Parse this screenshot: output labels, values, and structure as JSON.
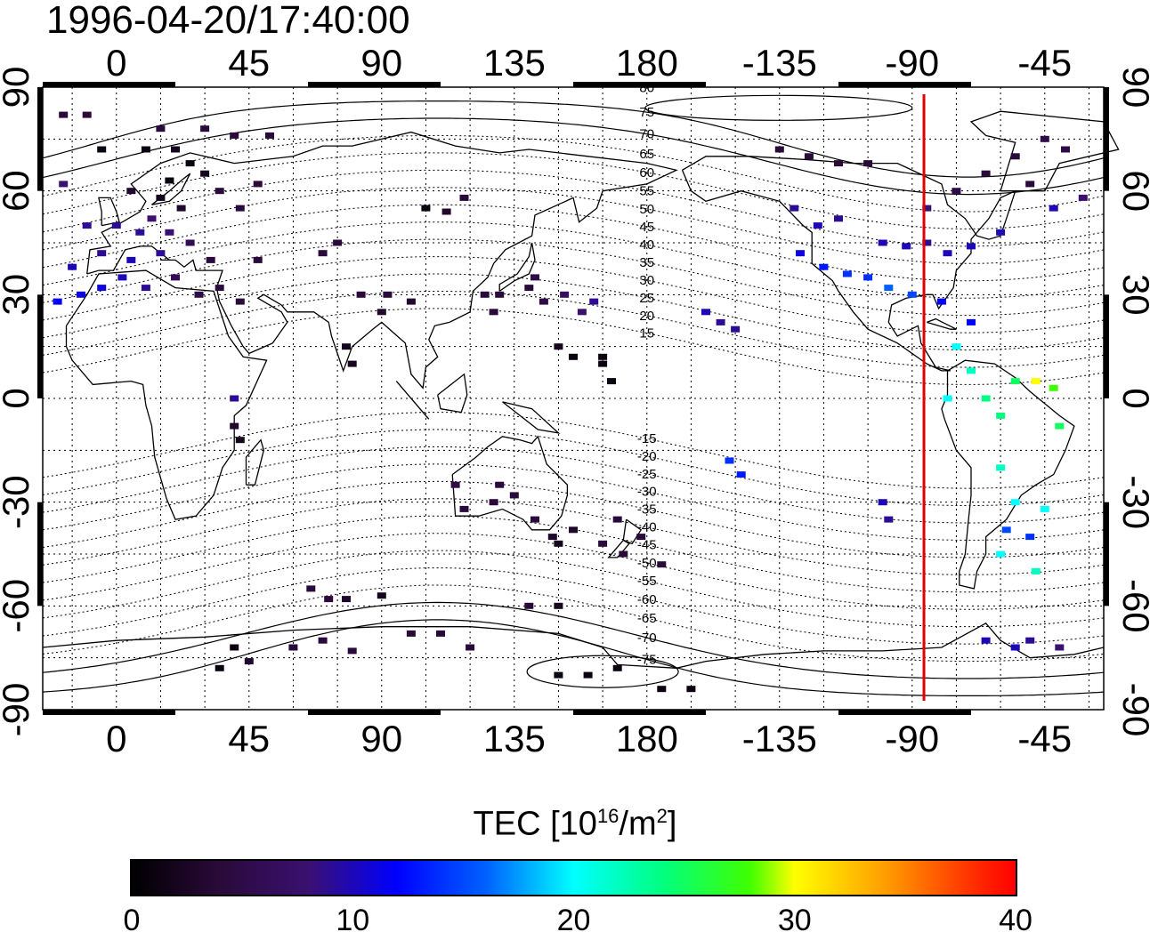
{
  "title": "1996-04-20/17:40:00",
  "lon_ticks": [
    {
      "value": 0,
      "label": "0"
    },
    {
      "value": 45,
      "label": "45"
    },
    {
      "value": 90,
      "label": "90"
    },
    {
      "value": 135,
      "label": "135"
    },
    {
      "value": 180,
      "label": "180"
    },
    {
      "value": 225,
      "label": "-135"
    },
    {
      "value": 270,
      "label": "-90"
    },
    {
      "value": 315,
      "label": "-45"
    }
  ],
  "lat_ticks": [
    {
      "value": 90,
      "label": "90"
    },
    {
      "value": 60,
      "label": "60"
    },
    {
      "value": 30,
      "label": "30"
    },
    {
      "value": 0,
      "label": "0"
    },
    {
      "value": -30,
      "label": "-30"
    },
    {
      "value": -60,
      "label": "-60"
    },
    {
      "value": -90,
      "label": "-90"
    }
  ],
  "contour_labels": [
    {
      "lat": 80,
      "label": "80"
    },
    {
      "lat": 75,
      "label": "75"
    },
    {
      "lat": 70,
      "label": "70"
    },
    {
      "lat": 65,
      "label": "65"
    },
    {
      "lat": 60,
      "label": "60"
    },
    {
      "lat": 55,
      "label": "55"
    },
    {
      "lat": 50,
      "label": "50"
    },
    {
      "lat": 45,
      "label": "45"
    },
    {
      "lat": 40,
      "label": "40"
    },
    {
      "lat": 35,
      "label": "35"
    },
    {
      "lat": 30,
      "label": "30"
    },
    {
      "lat": 25,
      "label": "25"
    },
    {
      "lat": 20,
      "label": "20"
    },
    {
      "lat": 15,
      "label": "15"
    },
    {
      "lat": -15,
      "label": "-15"
    },
    {
      "lat": -20,
      "label": "-20"
    },
    {
      "lat": -25,
      "label": "-25"
    },
    {
      "lat": -30,
      "label": "-30"
    },
    {
      "lat": -35,
      "label": "-35"
    },
    {
      "lat": -40,
      "label": "-40"
    },
    {
      "lat": -45,
      "label": "-45"
    },
    {
      "lat": -50,
      "label": "-50"
    },
    {
      "lat": -55,
      "label": "-55"
    },
    {
      "lat": -60,
      "label": "-60"
    },
    {
      "lat": -65,
      "label": "-65"
    },
    {
      "lat": -70,
      "label": "-70"
    },
    {
      "lat": -75,
      "label": "-75"
    }
  ],
  "terminator_lon": 274,
  "terminator_color": "#e00000",
  "colorbar": {
    "title": "TEC  [10",
    "title_exp": "16",
    "title_unit": "/m",
    "title_unit_exp": "2",
    "title_end": "]",
    "ticks": [
      {
        "value": 0,
        "label": "0"
      },
      {
        "value": 10,
        "label": "10"
      },
      {
        "value": 20,
        "label": "20"
      },
      {
        "value": 30,
        "label": "30"
      },
      {
        "value": 40,
        "label": "40"
      }
    ]
  },
  "chart_data": {
    "type": "scatter",
    "xlabel": "",
    "ylabel": "",
    "xlim": [
      -25,
      335
    ],
    "ylim": [
      -90,
      90
    ],
    "value_range": [
      0,
      40
    ],
    "points": [
      [
        -18,
        82,
        4
      ],
      [
        -10,
        82,
        4
      ],
      [
        15,
        78,
        4
      ],
      [
        30,
        78,
        4
      ],
      [
        40,
        76,
        4
      ],
      [
        52,
        76,
        4
      ],
      [
        -5,
        72,
        1
      ],
      [
        10,
        72,
        1
      ],
      [
        20,
        72,
        2
      ],
      [
        25,
        68,
        1
      ],
      [
        30,
        65,
        2
      ],
      [
        18,
        63,
        1
      ],
      [
        5,
        60,
        3
      ],
      [
        15,
        58,
        2
      ],
      [
        22,
        55,
        3
      ],
      [
        35,
        60,
        4
      ],
      [
        42,
        55,
        4
      ],
      [
        48,
        62,
        4
      ],
      [
        -18,
        62,
        8
      ],
      [
        -10,
        50,
        9
      ],
      [
        0,
        50,
        9
      ],
      [
        8,
        48,
        9
      ],
      [
        12,
        52,
        8
      ],
      [
        18,
        48,
        8
      ],
      [
        -5,
        42,
        9
      ],
      [
        5,
        40,
        10
      ],
      [
        15,
        42,
        9
      ],
      [
        25,
        45,
        6
      ],
      [
        32,
        40,
        4
      ],
      [
        -15,
        38,
        10
      ],
      [
        -20,
        28,
        12
      ],
      [
        -12,
        30,
        11
      ],
      [
        -5,
        32,
        11
      ],
      [
        2,
        35,
        10
      ],
      [
        10,
        32,
        9
      ],
      [
        20,
        35,
        6
      ],
      [
        28,
        30,
        5
      ],
      [
        35,
        32,
        4
      ],
      [
        42,
        28,
        4
      ],
      [
        48,
        40,
        4
      ],
      [
        75,
        45,
        4
      ],
      [
        70,
        42,
        4
      ],
      [
        83,
        30,
        4
      ],
      [
        92,
        30,
        4
      ],
      [
        100,
        28,
        3
      ],
      [
        90,
        25,
        3
      ],
      [
        78,
        15,
        2
      ],
      [
        80,
        10,
        2
      ],
      [
        105,
        55,
        1
      ],
      [
        112,
        54,
        3
      ],
      [
        118,
        58,
        4
      ],
      [
        125,
        30,
        4
      ],
      [
        130,
        30,
        4
      ],
      [
        128,
        25,
        4
      ],
      [
        140,
        32,
        4
      ],
      [
        145,
        28,
        5
      ],
      [
        142,
        35,
        5
      ],
      [
        152,
        30,
        7
      ],
      [
        158,
        25,
        8
      ],
      [
        162,
        28,
        9
      ],
      [
        150,
        15,
        2
      ],
      [
        155,
        12,
        1
      ],
      [
        165,
        10,
        1
      ],
      [
        168,
        5,
        1
      ],
      [
        165,
        12,
        1
      ],
      [
        40,
        0,
        9
      ],
      [
        40,
        -8,
        3
      ],
      [
        42,
        -12,
        2
      ],
      [
        115,
        -25,
        5
      ],
      [
        118,
        -32,
        4
      ],
      [
        128,
        -30,
        4
      ],
      [
        130,
        -25,
        4
      ],
      [
        135,
        -28,
        4
      ],
      [
        142,
        -35,
        4
      ],
      [
        148,
        -40,
        3
      ],
      [
        155,
        -38,
        3
      ],
      [
        150,
        -42,
        2
      ],
      [
        165,
        -42,
        4
      ],
      [
        172,
        -45,
        4
      ],
      [
        178,
        -40,
        4
      ],
      [
        185,
        -48,
        4
      ],
      [
        170,
        -35,
        4
      ],
      [
        140,
        -60,
        4
      ],
      [
        150,
        -60,
        2
      ],
      [
        66,
        -55,
        4
      ],
      [
        72,
        -58,
        4
      ],
      [
        78,
        -58,
        3
      ],
      [
        90,
        -57,
        2
      ],
      [
        40,
        -72,
        1
      ],
      [
        45,
        -76,
        3
      ],
      [
        60,
        -72,
        4
      ],
      [
        70,
        -70,
        4
      ],
      [
        80,
        -73,
        4
      ],
      [
        100,
        -68,
        4
      ],
      [
        110,
        -68,
        4
      ],
      [
        120,
        -72,
        4
      ],
      [
        150,
        -80,
        1
      ],
      [
        160,
        -80,
        1
      ],
      [
        170,
        -78,
        1
      ],
      [
        185,
        -84,
        1
      ],
      [
        195,
        -84,
        1
      ],
      [
        35,
        -78,
        1
      ],
      [
        200,
        25,
        10
      ],
      [
        205,
        22,
        9
      ],
      [
        210,
        20,
        9
      ],
      [
        208,
        -18,
        14
      ],
      [
        212,
        -22,
        13
      ],
      [
        225,
        72,
        4
      ],
      [
        235,
        70,
        4
      ],
      [
        245,
        68,
        4
      ],
      [
        255,
        68,
        4
      ],
      [
        230,
        55,
        9
      ],
      [
        238,
        50,
        10
      ],
      [
        245,
        52,
        9
      ],
      [
        232,
        42,
        11
      ],
      [
        240,
        38,
        13
      ],
      [
        248,
        36,
        14
      ],
      [
        255,
        35,
        14
      ],
      [
        262,
        32,
        16
      ],
      [
        270,
        30,
        15
      ],
      [
        260,
        45,
        10
      ],
      [
        268,
        44,
        10
      ],
      [
        275,
        45,
        9
      ],
      [
        282,
        42,
        10
      ],
      [
        290,
        44,
        10
      ],
      [
        300,
        48,
        10
      ],
      [
        275,
        55,
        8
      ],
      [
        285,
        60,
        5
      ],
      [
        295,
        65,
        4
      ],
      [
        305,
        70,
        4
      ],
      [
        315,
        75,
        5
      ],
      [
        322,
        72,
        5
      ],
      [
        310,
        62,
        4
      ],
      [
        318,
        55,
        10
      ],
      [
        328,
        58,
        8
      ],
      [
        280,
        28,
        12
      ],
      [
        290,
        22,
        12
      ],
      [
        285,
        15,
        20
      ],
      [
        290,
        8,
        22
      ],
      [
        295,
        0,
        24
      ],
      [
        282,
        0,
        20
      ],
      [
        300,
        -5,
        24
      ],
      [
        305,
        5,
        25
      ],
      [
        312,
        5,
        30
      ],
      [
        318,
        3,
        28
      ],
      [
        320,
        -8,
        25
      ],
      [
        300,
        -20,
        22
      ],
      [
        305,
        -30,
        20
      ],
      [
        302,
        -38,
        15
      ],
      [
        310,
        -40,
        14
      ],
      [
        300,
        -45,
        20
      ],
      [
        315,
        -32,
        20
      ],
      [
        312,
        -50,
        22
      ],
      [
        295,
        -70,
        10
      ],
      [
        305,
        -72,
        10
      ],
      [
        310,
        -70,
        9
      ],
      [
        320,
        -72,
        8
      ],
      [
        260,
        -30,
        10
      ],
      [
        262,
        -35,
        9
      ]
    ]
  }
}
